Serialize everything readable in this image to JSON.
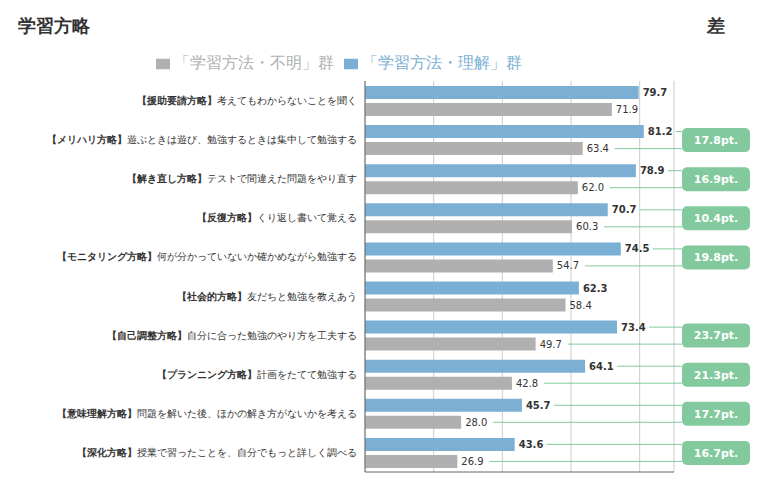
{
  "chart_data": {
    "type": "bar",
    "orientation": "horizontal",
    "title": "学習方略",
    "categories": [
      "【援助要請方略】考えてもわからないことを聞く",
      "【メリハリ方略】遊ぶときは遊び、勉強するときは集中して勉強する",
      "【解き直し方略】テストで間違えた問題をやり直す",
      "【反復方略】くり返し書いて覚える",
      "【モニタリング方略】何が分かっていないか確かめながら勉強する",
      "【社会的方略】友だちと勉強を教えあう",
      "【自己調整方略】自分に合った勉強のやり方を工夫する",
      "【プランニング方略】計画をたてて勉強する",
      "【意味理解方略】問題を解いた後、ほかの解き方がないかを考える",
      "【深化方略】授業で習ったことを、自分でもっと詳しく調べる"
    ],
    "series": [
      {
        "name": "「学習方法・理解」群",
        "color": "#7BAFD4",
        "values": [
          79.7,
          81.2,
          78.9,
          70.7,
          74.5,
          62.3,
          73.4,
          64.1,
          45.7,
          43.6
        ]
      },
      {
        "name": "「学習方法・不明」群",
        "color": "#B0B0B0",
        "values": [
          71.9,
          63.4,
          62.0,
          60.3,
          54.7,
          58.4,
          49.7,
          42.8,
          28.0,
          26.9
        ],
        "value_labels": [
          "71.9",
          "63.4",
          "62.0",
          "60.3",
          "54.7",
          "58.4",
          "49.7",
          "42.8",
          "28.0",
          "26.9"
        ]
      }
    ],
    "xlim": [
      0,
      90
    ],
    "xticks": [
      0,
      20,
      40,
      60,
      80
    ],
    "grid": true,
    "data_labels": true,
    "tick_labels": "y",
    "diff_title": "差",
    "diff_labels": [
      null,
      "17.8pt.",
      "16.9pt.",
      "10.4pt.",
      "19.8pt.",
      null,
      "23.7pt.",
      "21.3pt.",
      "17.7pt.",
      "16.7pt."
    ]
  }
}
